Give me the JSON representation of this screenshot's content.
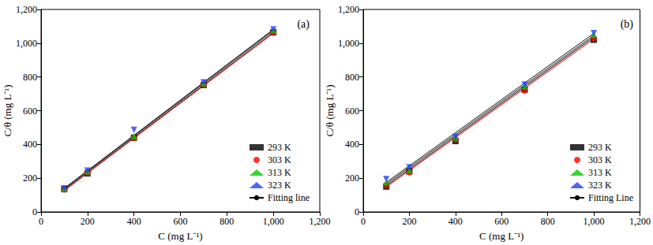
{
  "chart_data": [
    {
      "type": "scatter",
      "annotation": "(a)",
      "x_label": "C (mg L⁻¹)",
      "y_label": "C/θ (mg L⁻¹)",
      "xlim": [
        0,
        1200
      ],
      "xticks": [
        0,
        200,
        400,
        600,
        800,
        1000,
        1200
      ],
      "ylim": [
        0,
        1200
      ],
      "yticks": [
        0,
        200,
        400,
        600,
        800,
        1000,
        1200
      ],
      "grid": false,
      "legend": "lower right",
      "x": [
        100,
        200,
        400,
        700,
        1000
      ],
      "series": [
        {
          "name": "293 K",
          "type": "scatter",
          "color": "#000000",
          "marker": "square",
          "values": [
            135,
            228,
            440,
            752,
            1065
          ]
        },
        {
          "name": "303 K",
          "type": "scatter",
          "color": "#ff0000",
          "marker": "circle",
          "values": [
            133,
            235,
            440,
            755,
            1062
          ]
        },
        {
          "name": "313 K",
          "type": "scatter",
          "color": "#00cc00",
          "marker": "triangle",
          "values": [
            138,
            240,
            450,
            762,
            1075
          ]
        },
        {
          "name": "323 K",
          "type": "scatter",
          "color": "#1f3fff",
          "marker": "triangle_down",
          "values": [
            140,
            245,
            487,
            768,
            1082
          ]
        },
        {
          "name": "Fitting line",
          "type": "line",
          "color": "#000000",
          "line_style": "solid",
          "x": [
            100,
            1000
          ],
          "values": [
            128,
            1065
          ]
        },
        {
          "name": "Fitting line",
          "type": "line",
          "color": "#ff0000",
          "line_style": "solid",
          "x": [
            100,
            1000
          ],
          "values": [
            126,
            1058
          ]
        },
        {
          "name": "Fitting line",
          "type": "line",
          "color": "#000000",
          "line_style": "solid",
          "x": [
            100,
            1000
          ],
          "values": [
            135,
            1075
          ]
        },
        {
          "name": "Fitting line",
          "type": "line",
          "color": "#000000",
          "line_style": "solid",
          "x": [
            100,
            1000
          ],
          "values": [
            140,
            1082
          ]
        }
      ]
    },
    {
      "type": "scatter",
      "annotation": "(b)",
      "x_label": "C (mg L⁻¹)",
      "y_label": "C/θ (mg L⁻¹)",
      "xlim": [
        0,
        1200
      ],
      "xticks": [
        0,
        200,
        400,
        600,
        800,
        1000,
        1200
      ],
      "ylim": [
        0,
        1200
      ],
      "yticks": [
        0,
        200,
        400,
        600,
        800,
        1000,
        1200
      ],
      "grid": false,
      "legend": "lower right",
      "x": [
        100,
        200,
        400,
        700,
        1000
      ],
      "series": [
        {
          "name": "293 K",
          "type": "scatter",
          "color": "#000000",
          "marker": "square",
          "values": [
            150,
            240,
            420,
            725,
            1020
          ]
        },
        {
          "name": "303 K",
          "type": "scatter",
          "color": "#ff0000",
          "marker": "circle",
          "values": [
            160,
            235,
            430,
            720,
            1030
          ]
        },
        {
          "name": "313 K",
          "type": "scatter",
          "color": "#00cc00",
          "marker": "triangle",
          "values": [
            175,
            245,
            440,
            745,
            1050
          ]
        },
        {
          "name": "323 K",
          "type": "scatter",
          "color": "#1f3fff",
          "marker": "triangle_down",
          "values": [
            195,
            265,
            445,
            755,
            1060
          ]
        },
        {
          "name": "Fitting Line",
          "type": "line",
          "color": "#000000",
          "line_style": "solid",
          "x": [
            100,
            1000
          ],
          "values": [
            155,
            1035
          ]
        },
        {
          "name": "Fitting Line",
          "type": "line",
          "color": "#ff0000",
          "line_style": "solid",
          "x": [
            100,
            1000
          ],
          "values": [
            148,
            1025
          ]
        },
        {
          "name": "Fitting Line",
          "type": "line",
          "color": "#000000",
          "line_style": "solid",
          "x": [
            100,
            1000
          ],
          "values": [
            165,
            1045
          ]
        },
        {
          "name": "Fitting Line",
          "type": "line",
          "color": "#000000",
          "line_style": "solid",
          "x": [
            100,
            1000
          ],
          "values": [
            175,
            1058
          ]
        }
      ]
    }
  ]
}
